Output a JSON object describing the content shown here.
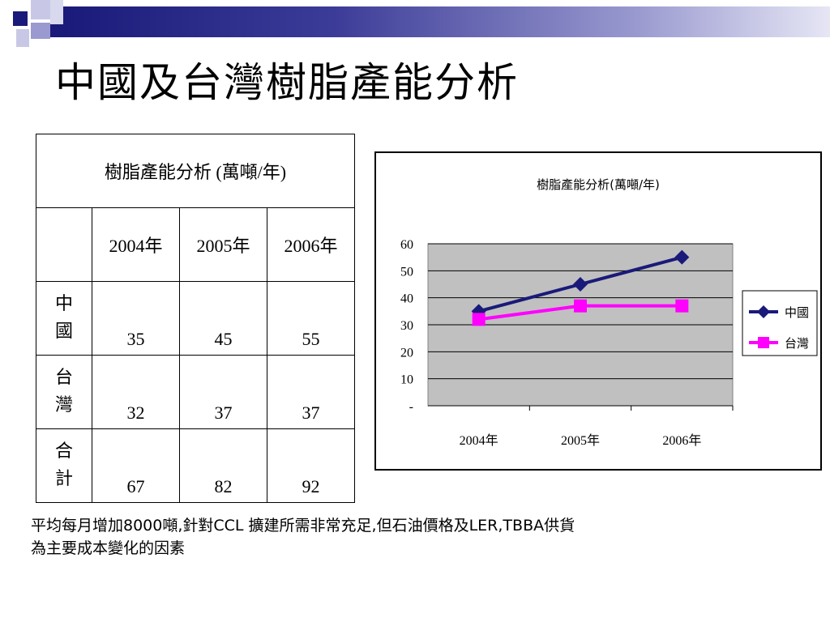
{
  "slide": {
    "title": "中國及台灣樹脂產能分析",
    "footnote_line1": "平均每月增加8000噸,針對CCL 擴建所需非常充足,但石油價格及LER,TBBA供貨",
    "footnote_line2": "為主要成本變化的因素",
    "colors": {
      "deco_dark": "#1a1a7a",
      "deco_mid": "#7f7fc0",
      "deco_light": "#c8c8e6"
    }
  },
  "table": {
    "title": "樹脂產能分析 (萬噸/年)",
    "columns": [
      "2004年",
      "2005年",
      "2006年"
    ],
    "rows": [
      {
        "label_line1": "中",
        "label_line2": "國",
        "values": [
          "35",
          "45",
          "55"
        ]
      },
      {
        "label_line1": "台",
        "label_line2": "灣",
        "values": [
          "32",
          "37",
          "37"
        ]
      },
      {
        "label_line1": "合",
        "label_line2": "計",
        "values": [
          "67",
          "82",
          "92"
        ]
      }
    ]
  },
  "chart_data": {
    "type": "line",
    "title": "樹脂產能分析(萬噸/年)",
    "categories": [
      "2004年",
      "2005年",
      "2006年"
    ],
    "series": [
      {
        "name": "中國",
        "values": [
          35,
          45,
          55
        ],
        "color": "#1a1a7a",
        "marker": "diamond"
      },
      {
        "name": "台灣",
        "values": [
          32,
          37,
          37
        ],
        "color": "#ff00ff",
        "marker": "square"
      }
    ],
    "yticks": [
      "-",
      "10",
      "20",
      "30",
      "40",
      "50",
      "60"
    ],
    "ylim": [
      0,
      60
    ],
    "grid": true,
    "plot_background": "#c0c0c0",
    "legend_position": "right"
  }
}
